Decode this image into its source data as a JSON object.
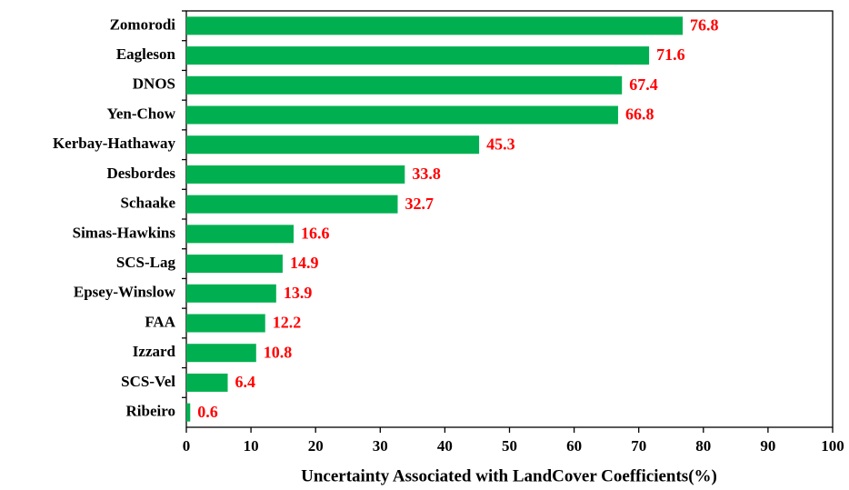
{
  "chart_data": {
    "type": "bar",
    "orientation": "horizontal",
    "x_label": "Uncertainty Associated with LandCover Coefficients(%)",
    "categories": [
      "Zomorodi",
      "Eagleson",
      "DNOS",
      "Yen-Chow",
      "Kerbay-Hathaway",
      "Desbordes",
      "Schaake",
      "Simas-Hawkins",
      "SCS-Lag",
      "Epsey-Winslow",
      "FAA",
      "Izzard",
      "SCS-Vel",
      "Ribeiro"
    ],
    "values": [
      76.8,
      71.6,
      67.4,
      66.8,
      45.3,
      33.8,
      32.7,
      16.6,
      14.9,
      13.9,
      12.2,
      10.8,
      6.4,
      0.6
    ],
    "color": "#00b050",
    "label_color": "#ff0000",
    "xlim": [
      0,
      100
    ],
    "xticks": [
      0,
      10,
      20,
      30,
      40,
      50,
      60,
      70,
      80,
      90,
      100
    ],
    "grid": false
  }
}
